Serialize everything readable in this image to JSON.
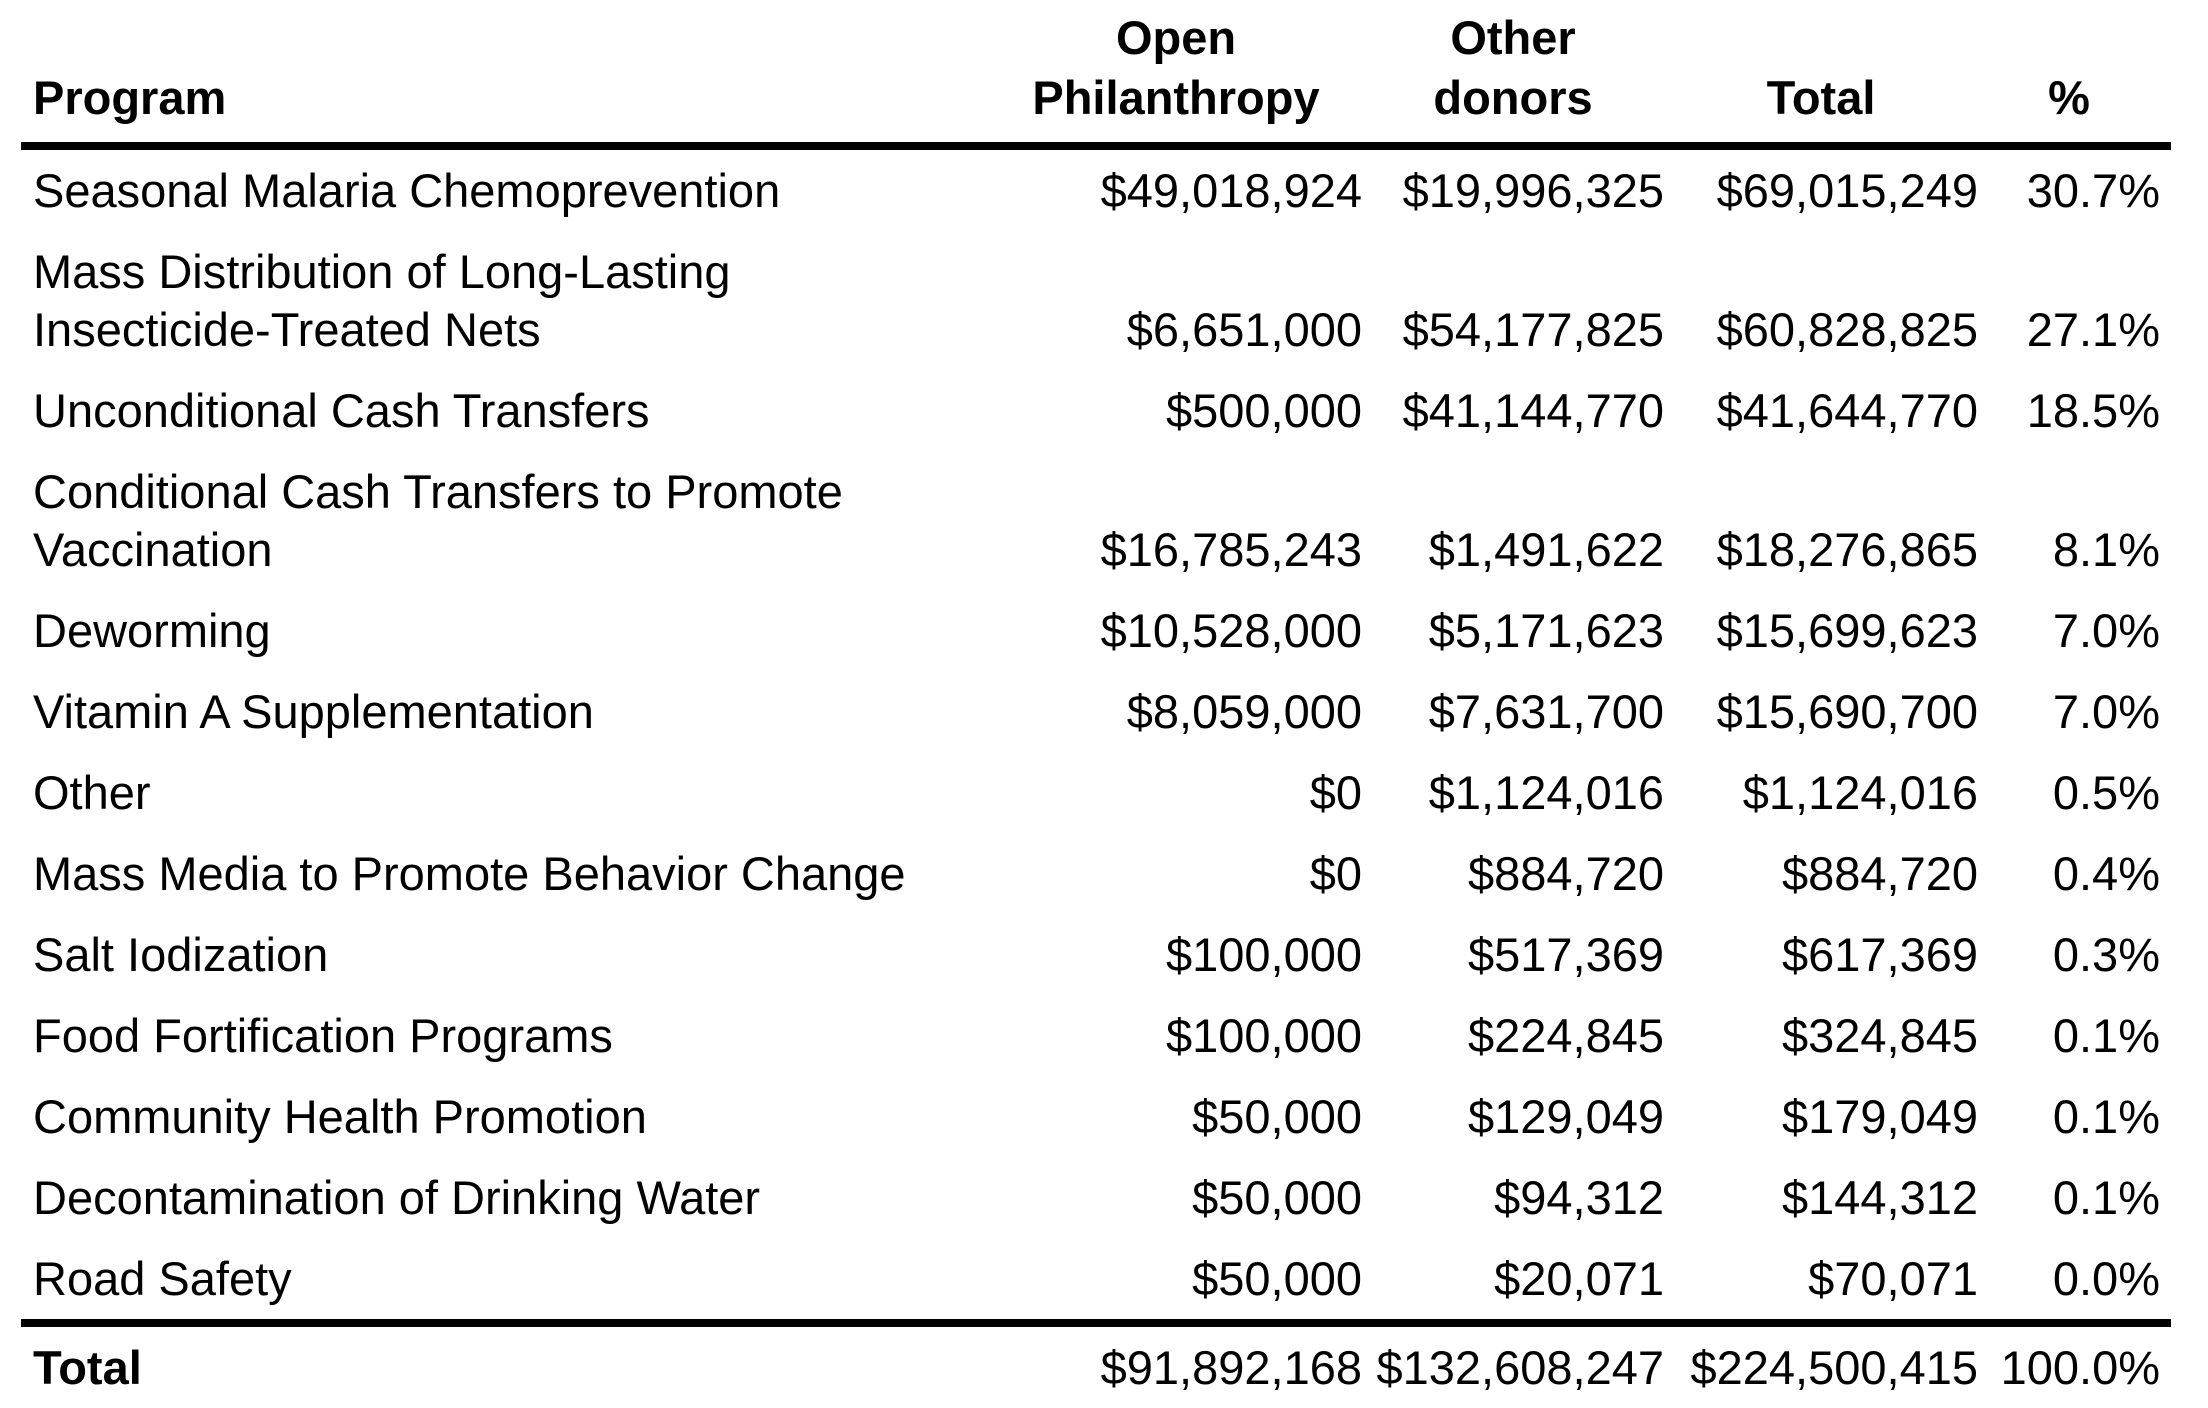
{
  "table": {
    "columns": {
      "program": "Program",
      "open_philanthropy": "Open\nPhilanthropy",
      "other_donors": "Other\ndonors",
      "total": "Total",
      "pct": "%"
    },
    "rows": [
      {
        "program": "Seasonal Malaria Chemoprevention",
        "open_philanthropy": "$49,018,924",
        "other_donors": "$19,996,325",
        "total": "$69,015,249",
        "pct": "30.7%"
      },
      {
        "program": "Mass Distribution of Long-Lasting\nInsecticide-Treated Nets",
        "open_philanthropy": "$6,651,000",
        "other_donors": "$54,177,825",
        "total": "$60,828,825",
        "pct": "27.1%"
      },
      {
        "program": "Unconditional Cash Transfers",
        "open_philanthropy": "$500,000",
        "other_donors": "$41,144,770",
        "total": "$41,644,770",
        "pct": "18.5%"
      },
      {
        "program": "Conditional Cash Transfers to Promote\nVaccination",
        "open_philanthropy": "$16,785,243",
        "other_donors": "$1,491,622",
        "total": "$18,276,865",
        "pct": "8.1%"
      },
      {
        "program": "Deworming",
        "open_philanthropy": "$10,528,000",
        "other_donors": "$5,171,623",
        "total": "$15,699,623",
        "pct": "7.0%"
      },
      {
        "program": "Vitamin A Supplementation",
        "open_philanthropy": "$8,059,000",
        "other_donors": "$7,631,700",
        "total": "$15,690,700",
        "pct": "7.0%"
      },
      {
        "program": "Other",
        "open_philanthropy": "$0",
        "other_donors": "$1,124,016",
        "total": "$1,124,016",
        "pct": "0.5%"
      },
      {
        "program": "Mass Media to Promote Behavior Change",
        "open_philanthropy": "$0",
        "other_donors": "$884,720",
        "total": "$884,720",
        "pct": "0.4%"
      },
      {
        "program": "Salt Iodization",
        "open_philanthropy": "$100,000",
        "other_donors": "$517,369",
        "total": "$617,369",
        "pct": "0.3%"
      },
      {
        "program": "Food Fortification Programs",
        "open_philanthropy": "$100,000",
        "other_donors": "$224,845",
        "total": "$324,845",
        "pct": "0.1%"
      },
      {
        "program": "Community Health Promotion",
        "open_philanthropy": "$50,000",
        "other_donors": "$129,049",
        "total": "$179,049",
        "pct": "0.1%"
      },
      {
        "program": "Decontamination of Drinking Water",
        "open_philanthropy": "$50,000",
        "other_donors": "$94,312",
        "total": "$144,312",
        "pct": "0.1%"
      },
      {
        "program": "Road Safety",
        "open_philanthropy": "$50,000",
        "other_donors": "$20,071",
        "total": "$70,071",
        "pct": "0.0%"
      }
    ],
    "footer": {
      "program": "Total",
      "open_philanthropy": "$91,892,168",
      "other_donors": "$132,608,247",
      "total": "$224,500,415",
      "pct": "100.0%"
    }
  }
}
